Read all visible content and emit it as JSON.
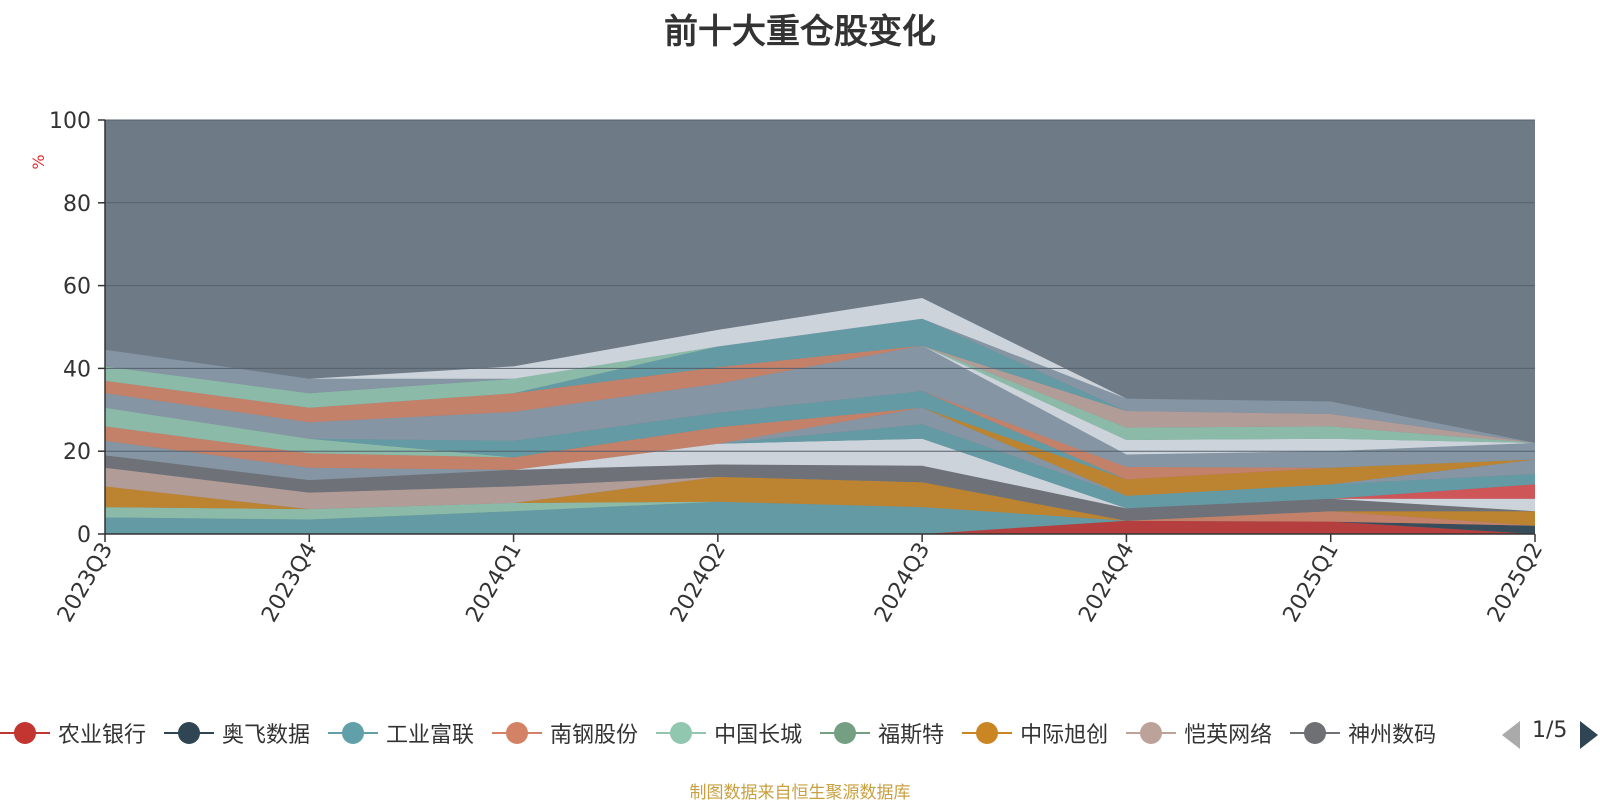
{
  "title": "前十大重仓股变化",
  "footer": {
    "text": "制图数据来自恒生聚源数据库",
    "color": "#c8a040"
  },
  "chart_data": {
    "type": "area",
    "stacked": true,
    "categories": [
      "2023Q3",
      "2023Q4",
      "2024Q1",
      "2024Q2",
      "2024Q3",
      "2024Q4",
      "2025Q1",
      "2025Q2"
    ],
    "ylabel": "%",
    "ylim": [
      0,
      100
    ],
    "yticks": [
      0,
      20,
      40,
      60,
      80,
      100
    ],
    "grid": true,
    "background_color": "#6e7a86",
    "series": [
      {
        "name": "农业银行",
        "color": "#c23531",
        "values": [
          0,
          0,
          0,
          0,
          0,
          3.2,
          3.0,
          0
        ]
      },
      {
        "name": "奥飞数据",
        "color": "#2f4554",
        "values": [
          0,
          0,
          0,
          0,
          0,
          0,
          0,
          2.0
        ]
      },
      {
        "name": "工业富联",
        "color": "#61a0a8",
        "values": [
          4.0,
          3.5,
          5.5,
          7.8,
          6.5,
          0,
          0,
          0
        ]
      },
      {
        "name": "南钢股份",
        "color": "#d48265",
        "values": [
          0,
          0,
          0,
          0,
          0,
          0,
          2.5,
          0
        ]
      },
      {
        "name": "中国长城",
        "color": "#91c7ae",
        "values": [
          2.5,
          2.5,
          2.0,
          0,
          0,
          0,
          0,
          0
        ]
      },
      {
        "name": "福斯特",
        "color": "#749f83",
        "values": [
          0,
          0,
          0,
          0,
          0,
          0,
          0,
          0
        ]
      },
      {
        "name": "中际旭创",
        "color": "#ca8622",
        "values": [
          5.0,
          0,
          0,
          6.0,
          6.0,
          0,
          0,
          3.5
        ]
      },
      {
        "name": "恺英网络",
        "color": "#bda29a",
        "values": [
          4.5,
          4.0,
          4.0,
          0,
          0,
          0,
          0,
          0
        ]
      },
      {
        "name": "神州数码",
        "color": "#6e7074",
        "values": [
          3.0,
          3.0,
          4.0,
          3.0,
          4.0,
          3.0,
          3.0,
          0
        ]
      },
      {
        "name": "",
        "color": "#dde3ea",
        "values": [
          0,
          0,
          0,
          5.0,
          6.5,
          0,
          0,
          3.0
        ]
      },
      {
        "name": "",
        "color": "#e05050",
        "values": [
          0,
          0,
          0,
          0,
          0,
          0,
          0,
          3.5
        ]
      },
      {
        "name": "",
        "color": "#61a0a8",
        "values": [
          0,
          0,
          0,
          0,
          3.5,
          3.0,
          3.5,
          2.5
        ]
      },
      {
        "name": "",
        "color": "#8a9aa8",
        "values": [
          3.5,
          3.0,
          0,
          0,
          4.0,
          0,
          0,
          3.5
        ]
      },
      {
        "name": "",
        "color": "#d48265",
        "values": [
          3.5,
          3.5,
          3.0,
          4.0,
          0,
          0,
          0,
          0
        ]
      },
      {
        "name": "",
        "color": "#ca8622",
        "values": [
          0,
          0,
          0,
          0,
          0,
          4.0,
          4.0,
          0
        ]
      },
      {
        "name": "",
        "color": "#91c7ae",
        "values": [
          4.5,
          3.5,
          0,
          0,
          0,
          0,
          0,
          0
        ]
      },
      {
        "name": "",
        "color": "#61a0a8",
        "values": [
          0,
          0,
          4.0,
          3.5,
          4.0,
          0,
          0,
          0
        ]
      },
      {
        "name": "",
        "color": "#d48265",
        "values": [
          0,
          0,
          0,
          0,
          0,
          3.0,
          0,
          0
        ]
      },
      {
        "name": "",
        "color": "#8a9aa8",
        "values": [
          3.5,
          4.0,
          7.0,
          7.0,
          11.0,
          3.0,
          4.0,
          4.0
        ]
      },
      {
        "name": "",
        "color": "#dde3ea",
        "values": [
          0,
          0,
          0,
          0,
          0,
          3.5,
          3.0,
          0
        ]
      },
      {
        "name": "",
        "color": "#91c7ae",
        "values": [
          0,
          0,
          0,
          0,
          0,
          3.0,
          3.0,
          0
        ]
      },
      {
        "name": "",
        "color": "#d48265",
        "values": [
          3.0,
          3.5,
          4.5,
          4.0,
          0,
          0,
          0,
          0
        ]
      },
      {
        "name": "",
        "color": "#bda29a",
        "values": [
          0,
          0,
          0,
          0,
          0,
          4.0,
          3.0,
          0
        ]
      },
      {
        "name": "",
        "color": "#61a0a8",
        "values": [
          0,
          0,
          0,
          5.0,
          6.5,
          0,
          0,
          0
        ]
      },
      {
        "name": "",
        "color": "#91c7ae",
        "values": [
          3.5,
          3.5,
          3.5,
          0,
          0,
          0,
          0,
          0
        ]
      },
      {
        "name": "",
        "color": "#8a9aa8",
        "values": [
          4.0,
          3.5,
          0,
          0,
          0,
          3.0,
          3.0,
          0
        ]
      },
      {
        "name": "",
        "color": "#dde3ea",
        "values": [
          0,
          0,
          3.0,
          4.0,
          5.0,
          0,
          0,
          0
        ]
      }
    ]
  },
  "legend": {
    "items": [
      {
        "label": "农业银行",
        "color": "#c23531"
      },
      {
        "label": "奥飞数据",
        "color": "#2f4554"
      },
      {
        "label": "工业富联",
        "color": "#61a0a8"
      },
      {
        "label": "南钢股份",
        "color": "#d48265"
      },
      {
        "label": "中国长城",
        "color": "#91c7ae"
      },
      {
        "label": "福斯特",
        "color": "#749f83"
      },
      {
        "label": "中际旭创",
        "color": "#ca8622"
      },
      {
        "label": "恺英网络",
        "color": "#bda29a"
      },
      {
        "label": "神州数码",
        "color": "#6e7074"
      }
    ],
    "page": "1/5"
  },
  "colors": {
    "axis": "#333333",
    "ylabel": "#e03030",
    "grid": "#55616c"
  }
}
